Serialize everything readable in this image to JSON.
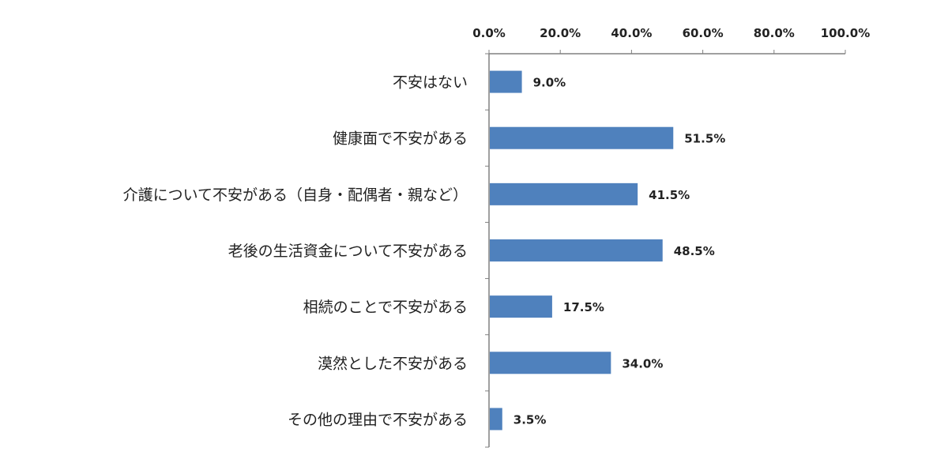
{
  "chart_data": {
    "type": "bar",
    "orientation": "horizontal",
    "categories": [
      "不安はない",
      "健康面で不安がある",
      "介護について不安がある（自身・配偶者・親など）",
      "老後の生活資金について不安がある",
      "相続のことで不安がある",
      "漠然とした不安がある",
      "その他の理由で不安がある"
    ],
    "values": [
      9.0,
      51.5,
      41.5,
      48.5,
      17.5,
      34.0,
      3.5
    ],
    "value_labels": [
      "9.0%",
      "51.5%",
      "41.5%",
      "48.5%",
      "17.5%",
      "34.0%",
      "3.5%"
    ],
    "x_ticks": [
      0,
      20,
      40,
      60,
      80,
      100
    ],
    "x_tick_labels": [
      "0.0%",
      "20.0%",
      "40.0%",
      "60.0%",
      "80.0%",
      "100.0%"
    ],
    "xlim": [
      0,
      100
    ],
    "x_axis_position": "top",
    "grid": false,
    "legend": "none",
    "bar_color": "#4f81bd",
    "title": "",
    "xlabel": "",
    "ylabel": ""
  }
}
